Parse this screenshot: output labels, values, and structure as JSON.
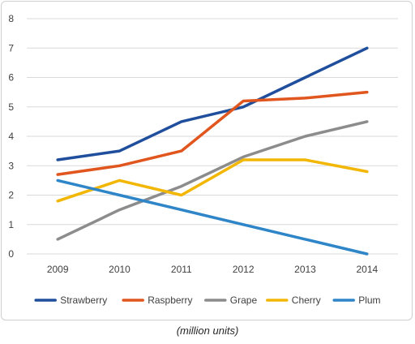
{
  "chart_data": {
    "type": "line",
    "categories": [
      "2009",
      "2010",
      "2011",
      "2012",
      "2013",
      "2014"
    ],
    "ylim": [
      0,
      8
    ],
    "yticks": [
      0,
      1,
      2,
      3,
      4,
      5,
      6,
      7,
      8
    ],
    "grid": true,
    "legend_position": "bottom",
    "series": [
      {
        "name": "Strawberry",
        "color": "#1f4e9c",
        "values": [
          3.2,
          3.5,
          4.5,
          5.0,
          6.0,
          7.0
        ]
      },
      {
        "name": "Raspberry",
        "color": "#e0561e",
        "values": [
          2.7,
          3.0,
          3.5,
          5.2,
          5.3,
          5.5
        ]
      },
      {
        "name": "Grape",
        "color": "#8c8c8c",
        "values": [
          0.5,
          1.5,
          2.3,
          3.3,
          4.0,
          4.5
        ]
      },
      {
        "name": "Cherry",
        "color": "#f2b705",
        "values": [
          1.8,
          2.5,
          2.0,
          3.2,
          3.2,
          2.8
        ]
      },
      {
        "name": "Plum",
        "color": "#2e86c8",
        "values": [
          2.5,
          2.0,
          1.5,
          1.0,
          0.5,
          0.0
        ]
      }
    ]
  },
  "caption": "(million units)"
}
